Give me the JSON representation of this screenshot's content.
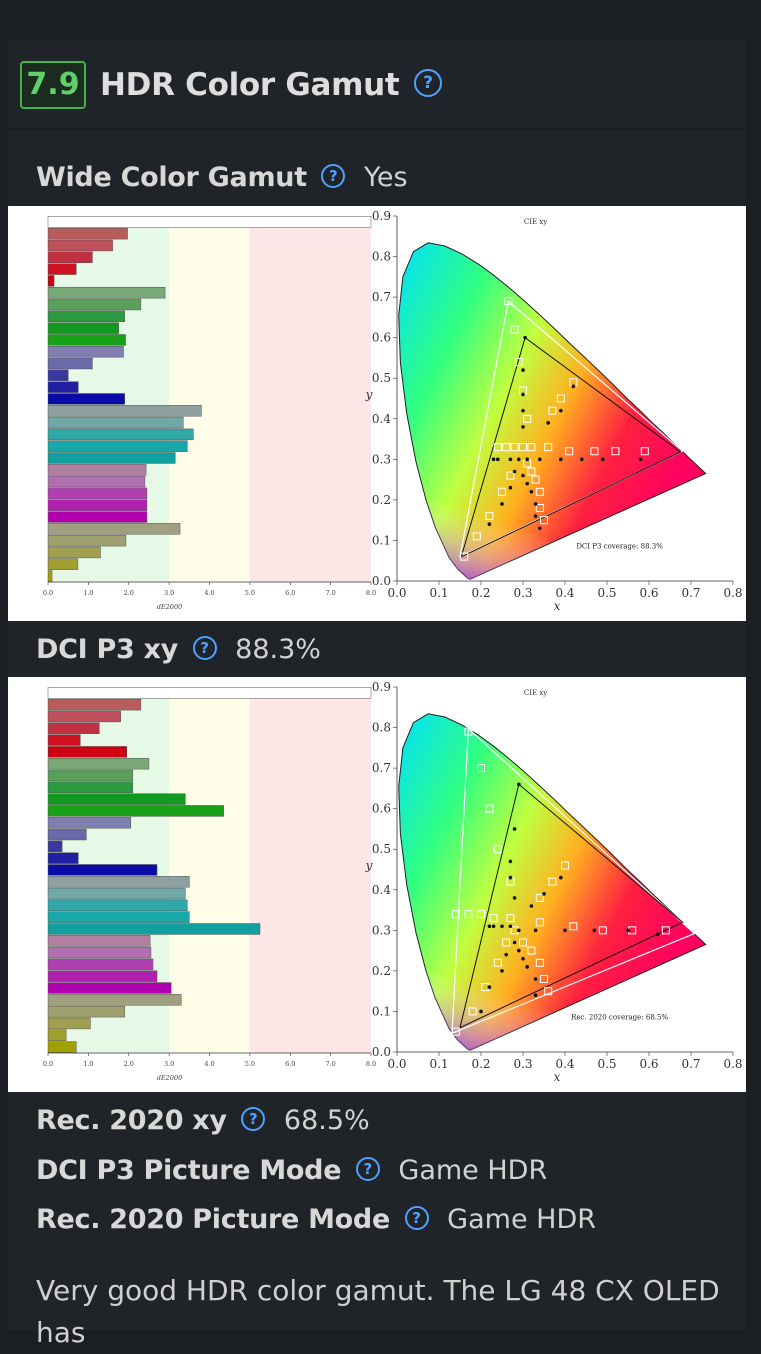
{
  "score": "7.9",
  "section_title": "HDR Color Gamut",
  "wide_gamut": {
    "label": "Wide Color Gamut",
    "value": "Yes"
  },
  "dci_xy": {
    "label": "DCI P3 xy",
    "value": "88.3%"
  },
  "rec_xy": {
    "label": "Rec. 2020 xy",
    "value": "68.5%"
  },
  "dci_mode": {
    "label": "DCI P3 Picture Mode",
    "value": "Game HDR"
  },
  "rec_mode": {
    "label": "Rec. 2020 Picture Mode",
    "value": "Game HDR"
  },
  "paragraph": "Very good HDR color gamut. The LG 48 CX OLED has",
  "help_glyph": "?",
  "icons": [
    "help-icon"
  ],
  "colors": {
    "score_border": "#3fb34f",
    "help_icon": "#4da3ff"
  },
  "chart_data": [
    {
      "type": "bar",
      "orientation": "horizontal",
      "xlabel": "dE2000",
      "xlim": [
        0,
        8
      ],
      "xticks": [
        "0.0",
        "1.0",
        "2.0",
        "3.0",
        "4.0",
        "5.0",
        "6.0",
        "7.0",
        "8.0"
      ],
      "zones": [
        {
          "from": 0,
          "to": 3,
          "color": "#e6f8e6"
        },
        {
          "from": 3,
          "to": 5,
          "color": "#fdfde8"
        },
        {
          "from": 5,
          "to": 8,
          "color": "#fde6e6"
        }
      ],
      "values": [
        8.0,
        1.97,
        1.6,
        1.1,
        0.7,
        0.15,
        2.9,
        2.3,
        1.9,
        1.75,
        1.92,
        1.87,
        1.1,
        0.5,
        0.75,
        1.9,
        3.8,
        3.35,
        3.6,
        3.45,
        3.15,
        2.43,
        2.4,
        2.45,
        2.45,
        2.45,
        3.27,
        1.93,
        1.3,
        0.74,
        0.1
      ],
      "colors": [
        "#ffffff",
        "#b85c5c",
        "#bf4f5a",
        "#c03040",
        "#d01020",
        "#cc0010",
        "#7aa878",
        "#5aa05a",
        "#2c9a40",
        "#129a20",
        "#18a018",
        "#8080b0",
        "#6a6aaa",
        "#3838a0",
        "#2020a0",
        "#0b0ba8",
        "#8fa0a0",
        "#70a8a8",
        "#30a8a8",
        "#18a8a8",
        "#10a0a0",
        "#b080a0",
        "#b070b0",
        "#b040b0",
        "#b020b0",
        "#b000b0",
        "#a0a080",
        "#a0a070",
        "#a0a050",
        "#a0a030",
        "#a0a000"
      ]
    },
    {
      "type": "scatter",
      "title": "CIE xy",
      "xlabel": "x",
      "ylabel": "y",
      "xlim": [
        0,
        0.8
      ],
      "ylim": [
        0,
        0.9
      ],
      "xticks": [
        "0.0",
        "0.1",
        "0.2",
        "0.3",
        "0.4",
        "0.5",
        "0.6",
        "0.7",
        "0.8"
      ],
      "yticks": [
        "0.0",
        "0.1",
        "0.2",
        "0.3",
        "0.4",
        "0.5",
        "0.6",
        "0.7",
        "0.8",
        "0.9"
      ],
      "annotation": "DCI P3 coverage: 88.3%",
      "reference_triangle": [
        [
          0.68,
          0.32
        ],
        [
          0.265,
          0.69
        ],
        [
          0.15,
          0.06
        ]
      ],
      "measured_triangle": [
        [
          0.675,
          0.318
        ],
        [
          0.305,
          0.6
        ],
        [
          0.153,
          0.06
        ]
      ],
      "targets": [
        [
          0.265,
          0.69
        ],
        [
          0.28,
          0.62
        ],
        [
          0.29,
          0.54
        ],
        [
          0.3,
          0.47
        ],
        [
          0.31,
          0.4
        ],
        [
          0.24,
          0.33
        ],
        [
          0.26,
          0.33
        ],
        [
          0.28,
          0.33
        ],
        [
          0.3,
          0.33
        ],
        [
          0.32,
          0.33
        ],
        [
          0.36,
          0.33
        ],
        [
          0.41,
          0.32
        ],
        [
          0.47,
          0.32
        ],
        [
          0.52,
          0.32
        ],
        [
          0.59,
          0.32
        ],
        [
          0.37,
          0.42
        ],
        [
          0.39,
          0.45
        ],
        [
          0.42,
          0.49
        ],
        [
          0.31,
          0.29
        ],
        [
          0.32,
          0.27
        ],
        [
          0.33,
          0.25
        ],
        [
          0.34,
          0.22
        ],
        [
          0.34,
          0.18
        ],
        [
          0.35,
          0.15
        ],
        [
          0.27,
          0.26
        ],
        [
          0.25,
          0.22
        ],
        [
          0.22,
          0.16
        ],
        [
          0.19,
          0.11
        ],
        [
          0.16,
          0.06
        ]
      ],
      "measured": [
        [
          0.305,
          0.6
        ],
        [
          0.3,
          0.52
        ],
        [
          0.3,
          0.46
        ],
        [
          0.3,
          0.42
        ],
        [
          0.3,
          0.38
        ],
        [
          0.23,
          0.3
        ],
        [
          0.24,
          0.3
        ],
        [
          0.27,
          0.3
        ],
        [
          0.29,
          0.3
        ],
        [
          0.31,
          0.3
        ],
        [
          0.34,
          0.3
        ],
        [
          0.39,
          0.3
        ],
        [
          0.44,
          0.3
        ],
        [
          0.49,
          0.3
        ],
        [
          0.58,
          0.3
        ],
        [
          0.36,
          0.39
        ],
        [
          0.39,
          0.42
        ],
        [
          0.42,
          0.48
        ],
        [
          0.3,
          0.26
        ],
        [
          0.31,
          0.24
        ],
        [
          0.32,
          0.22
        ],
        [
          0.33,
          0.19
        ],
        [
          0.33,
          0.16
        ],
        [
          0.34,
          0.13
        ],
        [
          0.28,
          0.27
        ],
        [
          0.27,
          0.23
        ],
        [
          0.25,
          0.19
        ],
        [
          0.22,
          0.14
        ]
      ]
    },
    {
      "type": "bar",
      "orientation": "horizontal",
      "xlabel": "dE2000",
      "xlim": [
        0,
        8
      ],
      "xticks": [
        "0.0",
        "1.0",
        "2.0",
        "3.0",
        "4.0",
        "5.0",
        "6.0",
        "7.0",
        "8.0"
      ],
      "zones": [
        {
          "from": 0,
          "to": 3,
          "color": "#e6f8e6"
        },
        {
          "from": 3,
          "to": 5,
          "color": "#fdfde8"
        },
        {
          "from": 5,
          "to": 8,
          "color": "#fde6e6"
        }
      ],
      "values": [
        8.0,
        2.3,
        1.8,
        1.27,
        0.8,
        1.95,
        2.5,
        2.1,
        2.1,
        3.4,
        4.35,
        2.05,
        0.95,
        0.35,
        0.75,
        2.7,
        3.5,
        3.4,
        3.45,
        3.5,
        5.25,
        2.53,
        2.55,
        2.6,
        2.7,
        3.05,
        3.3,
        1.9,
        1.05,
        0.45,
        0.7
      ],
      "colors": [
        "#ffffff",
        "#b85c5c",
        "#bf4f5a",
        "#c03040",
        "#d01020",
        "#cc0010",
        "#7aa878",
        "#5aa05a",
        "#2c9a40",
        "#129a20",
        "#18a018",
        "#8080b0",
        "#6a6aaa",
        "#3838a0",
        "#2020a0",
        "#0b0ba8",
        "#8fa0a0",
        "#70a8a8",
        "#30a8a8",
        "#18a8a8",
        "#10a0a0",
        "#b080a0",
        "#b070b0",
        "#b040b0",
        "#b020b0",
        "#b000b0",
        "#a0a080",
        "#a0a070",
        "#a0a050",
        "#a0a030",
        "#a0a000"
      ]
    },
    {
      "type": "scatter",
      "title": "CIE xy",
      "xlabel": "x",
      "ylabel": "y",
      "xlim": [
        0,
        0.8
      ],
      "ylim": [
        0,
        0.9
      ],
      "xticks": [
        "0.0",
        "0.1",
        "0.2",
        "0.3",
        "0.4",
        "0.5",
        "0.6",
        "0.7",
        "0.8"
      ],
      "yticks": [
        "0.0",
        "0.1",
        "0.2",
        "0.3",
        "0.4",
        "0.5",
        "0.6",
        "0.7",
        "0.8",
        "0.9"
      ],
      "annotation": "Rec. 2020 coverage: 68.5%",
      "reference_triangle": [
        [
          0.708,
          0.292
        ],
        [
          0.17,
          0.797
        ],
        [
          0.131,
          0.046
        ]
      ],
      "measured_triangle": [
        [
          0.68,
          0.32
        ],
        [
          0.29,
          0.66
        ],
        [
          0.15,
          0.06
        ]
      ],
      "targets": [
        [
          0.17,
          0.79
        ],
        [
          0.2,
          0.7
        ],
        [
          0.22,
          0.6
        ],
        [
          0.24,
          0.5
        ],
        [
          0.27,
          0.42
        ],
        [
          0.14,
          0.34
        ],
        [
          0.17,
          0.34
        ],
        [
          0.2,
          0.34
        ],
        [
          0.23,
          0.33
        ],
        [
          0.27,
          0.33
        ],
        [
          0.34,
          0.32
        ],
        [
          0.42,
          0.31
        ],
        [
          0.49,
          0.3
        ],
        [
          0.56,
          0.3
        ],
        [
          0.64,
          0.3
        ],
        [
          0.34,
          0.38
        ],
        [
          0.37,
          0.42
        ],
        [
          0.4,
          0.46
        ],
        [
          0.28,
          0.3
        ],
        [
          0.3,
          0.27
        ],
        [
          0.32,
          0.25
        ],
        [
          0.34,
          0.22
        ],
        [
          0.35,
          0.18
        ],
        [
          0.36,
          0.15
        ],
        [
          0.26,
          0.27
        ],
        [
          0.24,
          0.22
        ],
        [
          0.21,
          0.16
        ],
        [
          0.18,
          0.1
        ],
        [
          0.14,
          0.05
        ]
      ],
      "measured": [
        [
          0.29,
          0.66
        ],
        [
          0.28,
          0.55
        ],
        [
          0.27,
          0.47
        ],
        [
          0.27,
          0.43
        ],
        [
          0.28,
          0.38
        ],
        [
          0.22,
          0.31
        ],
        [
          0.23,
          0.31
        ],
        [
          0.25,
          0.31
        ],
        [
          0.27,
          0.31
        ],
        [
          0.29,
          0.3
        ],
        [
          0.33,
          0.3
        ],
        [
          0.4,
          0.3
        ],
        [
          0.47,
          0.3
        ],
        [
          0.55,
          0.3
        ],
        [
          0.62,
          0.29
        ],
        [
          0.32,
          0.36
        ],
        [
          0.35,
          0.39
        ],
        [
          0.39,
          0.43
        ],
        [
          0.28,
          0.27
        ],
        [
          0.29,
          0.25
        ],
        [
          0.3,
          0.23
        ],
        [
          0.31,
          0.21
        ],
        [
          0.33,
          0.18
        ],
        [
          0.33,
          0.14
        ],
        [
          0.26,
          0.24
        ],
        [
          0.25,
          0.2
        ],
        [
          0.22,
          0.16
        ],
        [
          0.2,
          0.1
        ]
      ]
    }
  ]
}
